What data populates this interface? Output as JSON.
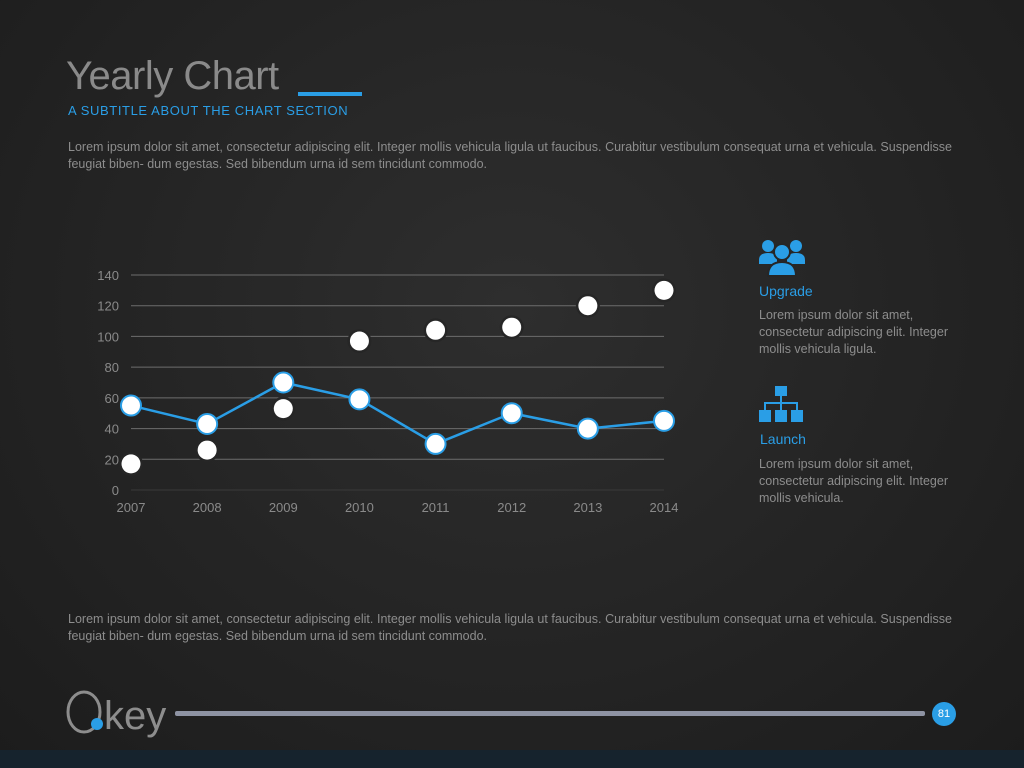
{
  "header": {
    "title": "Yearly Chart",
    "subtitle": "A SUBTITLE ABOUT THE CHART SECTION"
  },
  "paragraphs": {
    "top": "Lorem ipsum dolor sit amet, consectetur adipiscing elit. Integer mollis vehicula ligula ut faucibus. Curabitur vestibulum consequat urna et vehicula. Suspendisse feugiat biben- dum egestas. Sed bibendum urna id sem tincidunt commodo.",
    "bottom": "Lorem ipsum dolor sit amet, consectetur adipiscing elit. Integer mollis vehicula ligula ut faucibus. Curabitur vestibulum consequat urna et vehicula. Suspendisse feugiat biben- dum egestas. Sed bibendum urna id sem tincidunt commodo."
  },
  "chart_data": {
    "type": "line",
    "x": [
      "2007",
      "2008",
      "2009",
      "2010",
      "2011",
      "2012",
      "2013",
      "2014"
    ],
    "yticks": [
      0,
      20,
      40,
      60,
      80,
      100,
      120,
      140
    ],
    "ylim": [
      0,
      140
    ],
    "grid": true,
    "series": [
      {
        "style": "line",
        "color": "#2a9ee6",
        "values": [
          55,
          43,
          70,
          59,
          30,
          50,
          40,
          45
        ]
      },
      {
        "style": "points",
        "color": "#ffffff",
        "values": [
          17,
          26,
          53,
          97,
          104,
          106,
          120,
          130
        ]
      }
    ]
  },
  "features": [
    {
      "icon": "users-icon",
      "title": "Upgrade",
      "text": "Lorem ipsum dolor sit amet, consectetur adipiscing elit. Integer mollis vehicula ligula."
    },
    {
      "icon": "hierarchy-icon",
      "title": "Launch",
      "text": "Lorem ipsum dolor sit amet, consectetur adipiscing elit. Integer mollis vehicula."
    }
  ],
  "footer": {
    "logo_text": "Okey",
    "page_number": "81"
  },
  "colors": {
    "accent": "#2a9ee6",
    "background": "#262626",
    "text": "#8d8d8d"
  }
}
